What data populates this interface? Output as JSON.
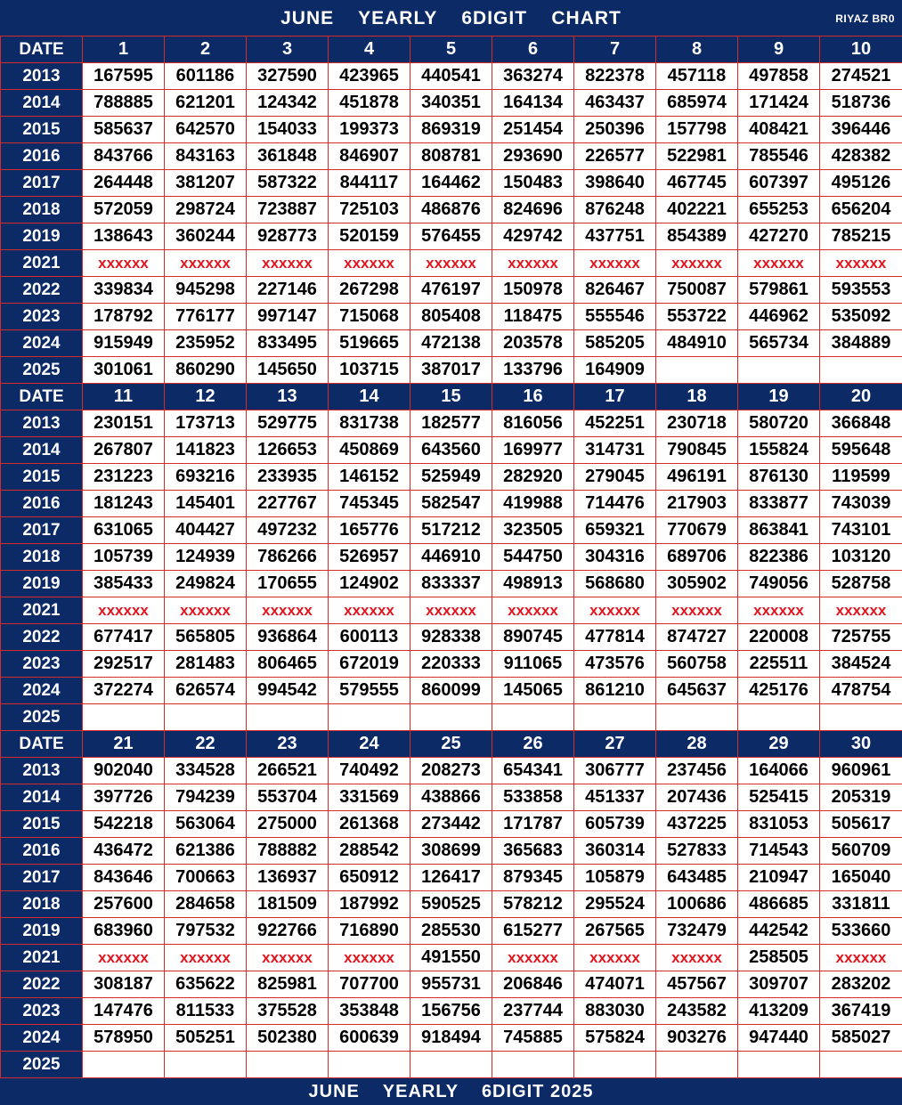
{
  "header": {
    "title_parts": [
      "JUNE",
      "YEARLY",
      "6DIGIT",
      "CHART"
    ],
    "brand": "RIYAZ BR0"
  },
  "footer": {
    "title_parts": [
      "JUNE",
      "YEARLY",
      "6DIGIT 2025"
    ]
  },
  "table": {
    "date_label": "DATE",
    "blocks": [
      {
        "days": [
          "1",
          "2",
          "3",
          "4",
          "5",
          "6",
          "7",
          "8",
          "9",
          "10"
        ],
        "rows": [
          {
            "year": "2013",
            "values": [
              "167595",
              "601186",
              "327590",
              "423965",
              "440541",
              "363274",
              "822378",
              "457118",
              "497858",
              "274521"
            ]
          },
          {
            "year": "2014",
            "values": [
              "788885",
              "621201",
              "124342",
              "451878",
              "340351",
              "164134",
              "463437",
              "685974",
              "171424",
              "518736"
            ]
          },
          {
            "year": "2015",
            "values": [
              "585637",
              "642570",
              "154033",
              "199373",
              "869319",
              "251454",
              "250396",
              "157798",
              "408421",
              "396446"
            ]
          },
          {
            "year": "2016",
            "values": [
              "843766",
              "843163",
              "361848",
              "846907",
              "808781",
              "293690",
              "226577",
              "522981",
              "785546",
              "428382"
            ]
          },
          {
            "year": "2017",
            "values": [
              "264448",
              "381207",
              "587322",
              "844117",
              "164462",
              "150483",
              "398640",
              "467745",
              "607397",
              "495126"
            ]
          },
          {
            "year": "2018",
            "values": [
              "572059",
              "298724",
              "723887",
              "725103",
              "486876",
              "824696",
              "876248",
              "402221",
              "655253",
              "656204"
            ]
          },
          {
            "year": "2019",
            "values": [
              "138643",
              "360244",
              "928773",
              "520159",
              "576455",
              "429742",
              "437751",
              "854389",
              "427270",
              "785215"
            ]
          },
          {
            "year": "2021",
            "values": [
              "xxxxxx",
              "xxxxxx",
              "xxxxxx",
              "xxxxxx",
              "xxxxxx",
              "xxxxxx",
              "xxxxxx",
              "xxxxxx",
              "xxxxxx",
              "xxxxxx"
            ]
          },
          {
            "year": "2022",
            "values": [
              "339834",
              "945298",
              "227146",
              "267298",
              "476197",
              "150978",
              "826467",
              "750087",
              "579861",
              "593553"
            ]
          },
          {
            "year": "2023",
            "values": [
              "178792",
              "776177",
              "997147",
              "715068",
              "805408",
              "118475",
              "555546",
              "553722",
              "446962",
              "535092"
            ]
          },
          {
            "year": "2024",
            "values": [
              "915949",
              "235952",
              "833495",
              "519665",
              "472138",
              "203578",
              "585205",
              "484910",
              "565734",
              "384889"
            ]
          },
          {
            "year": "2025",
            "values": [
              "301061",
              "860290",
              "145650",
              "103715",
              "387017",
              "133796",
              "164909",
              "",
              "",
              ""
            ]
          }
        ]
      },
      {
        "days": [
          "11",
          "12",
          "13",
          "14",
          "15",
          "16",
          "17",
          "18",
          "19",
          "20"
        ],
        "rows": [
          {
            "year": "2013",
            "values": [
              "230151",
              "173713",
              "529775",
              "831738",
              "182577",
              "816056",
              "452251",
              "230718",
              "580720",
              "366848"
            ]
          },
          {
            "year": "2014",
            "values": [
              "267807",
              "141823",
              "126653",
              "450869",
              "643560",
              "169977",
              "314731",
              "790845",
              "155824",
              "595648"
            ]
          },
          {
            "year": "2015",
            "values": [
              "231223",
              "693216",
              "233935",
              "146152",
              "525949",
              "282920",
              "279045",
              "496191",
              "876130",
              "119599"
            ]
          },
          {
            "year": "2016",
            "values": [
              "181243",
              "145401",
              "227767",
              "745345",
              "582547",
              "419988",
              "714476",
              "217903",
              "833877",
              "743039"
            ]
          },
          {
            "year": "2017",
            "values": [
              "631065",
              "404427",
              "497232",
              "165776",
              "517212",
              "323505",
              "659321",
              "770679",
              "863841",
              "743101"
            ]
          },
          {
            "year": "2018",
            "values": [
              "105739",
              "124939",
              "786266",
              "526957",
              "446910",
              "544750",
              "304316",
              "689706",
              "822386",
              "103120"
            ]
          },
          {
            "year": "2019",
            "values": [
              "385433",
              "249824",
              "170655",
              "124902",
              "833337",
              "498913",
              "568680",
              "305902",
              "749056",
              "528758"
            ]
          },
          {
            "year": "2021",
            "values": [
              "xxxxxx",
              "xxxxxx",
              "xxxxxx",
              "xxxxxx",
              "xxxxxx",
              "xxxxxx",
              "xxxxxx",
              "xxxxxx",
              "xxxxxx",
              "xxxxxx"
            ]
          },
          {
            "year": "2022",
            "values": [
              "677417",
              "565805",
              "936864",
              "600113",
              "928338",
              "890745",
              "477814",
              "874727",
              "220008",
              "725755"
            ]
          },
          {
            "year": "2023",
            "values": [
              "292517",
              "281483",
              "806465",
              "672019",
              "220333",
              "911065",
              "473576",
              "560758",
              "225511",
              "384524"
            ]
          },
          {
            "year": "2024",
            "values": [
              "372274",
              "626574",
              "994542",
              "579555",
              "860099",
              "145065",
              "861210",
              "645637",
              "425176",
              "478754"
            ]
          },
          {
            "year": "2025",
            "values": [
              "",
              "",
              "",
              "",
              "",
              "",
              "",
              "",
              "",
              ""
            ]
          }
        ]
      },
      {
        "days": [
          "21",
          "22",
          "23",
          "24",
          "25",
          "26",
          "27",
          "28",
          "29",
          "30"
        ],
        "rows": [
          {
            "year": "2013",
            "values": [
              "902040",
              "334528",
              "266521",
              "740492",
              "208273",
              "654341",
              "306777",
              "237456",
              "164066",
              "960961"
            ]
          },
          {
            "year": "2014",
            "values": [
              "397726",
              "794239",
              "553704",
              "331569",
              "438866",
              "533858",
              "451337",
              "207436",
              "525415",
              "205319"
            ]
          },
          {
            "year": "2015",
            "values": [
              "542218",
              "563064",
              "275000",
              "261368",
              "273442",
              "171787",
              "605739",
              "437225",
              "831053",
              "505617"
            ]
          },
          {
            "year": "2016",
            "values": [
              "436472",
              "621386",
              "788882",
              "288542",
              "308699",
              "365683",
              "360314",
              "527833",
              "714543",
              "560709"
            ]
          },
          {
            "year": "2017",
            "values": [
              "843646",
              "700663",
              "136937",
              "650912",
              "126417",
              "879345",
              "105879",
              "643485",
              "210947",
              "165040"
            ]
          },
          {
            "year": "2018",
            "values": [
              "257600",
              "284658",
              "181509",
              "187992",
              "590525",
              "578212",
              "295524",
              "100686",
              "486685",
              "331811"
            ]
          },
          {
            "year": "2019",
            "values": [
              "683960",
              "797532",
              "922766",
              "716890",
              "285530",
              "615277",
              "267565",
              "732479",
              "442542",
              "533660"
            ]
          },
          {
            "year": "2021",
            "values": [
              "xxxxxx",
              "xxxxxx",
              "xxxxxx",
              "xxxxxx",
              "491550",
              "xxxxxx",
              "xxxxxx",
              "xxxxxx",
              "258505",
              "xxxxxx"
            ]
          },
          {
            "year": "2022",
            "values": [
              "308187",
              "635622",
              "825981",
              "707700",
              "955731",
              "206846",
              "474071",
              "457567",
              "309707",
              "283202"
            ]
          },
          {
            "year": "2023",
            "values": [
              "147476",
              "811533",
              "375528",
              "353848",
              "156756",
              "237744",
              "883030",
              "243582",
              "413209",
              "367419"
            ]
          },
          {
            "year": "2024",
            "values": [
              "578950",
              "505251",
              "502380",
              "600639",
              "918494",
              "745885",
              "575824",
              "903276",
              "947440",
              "585027"
            ]
          },
          {
            "year": "2025",
            "values": [
              "",
              "",
              "",
              "",
              "",
              "",
              "",
              "",
              "",
              ""
            ]
          }
        ]
      }
    ]
  }
}
